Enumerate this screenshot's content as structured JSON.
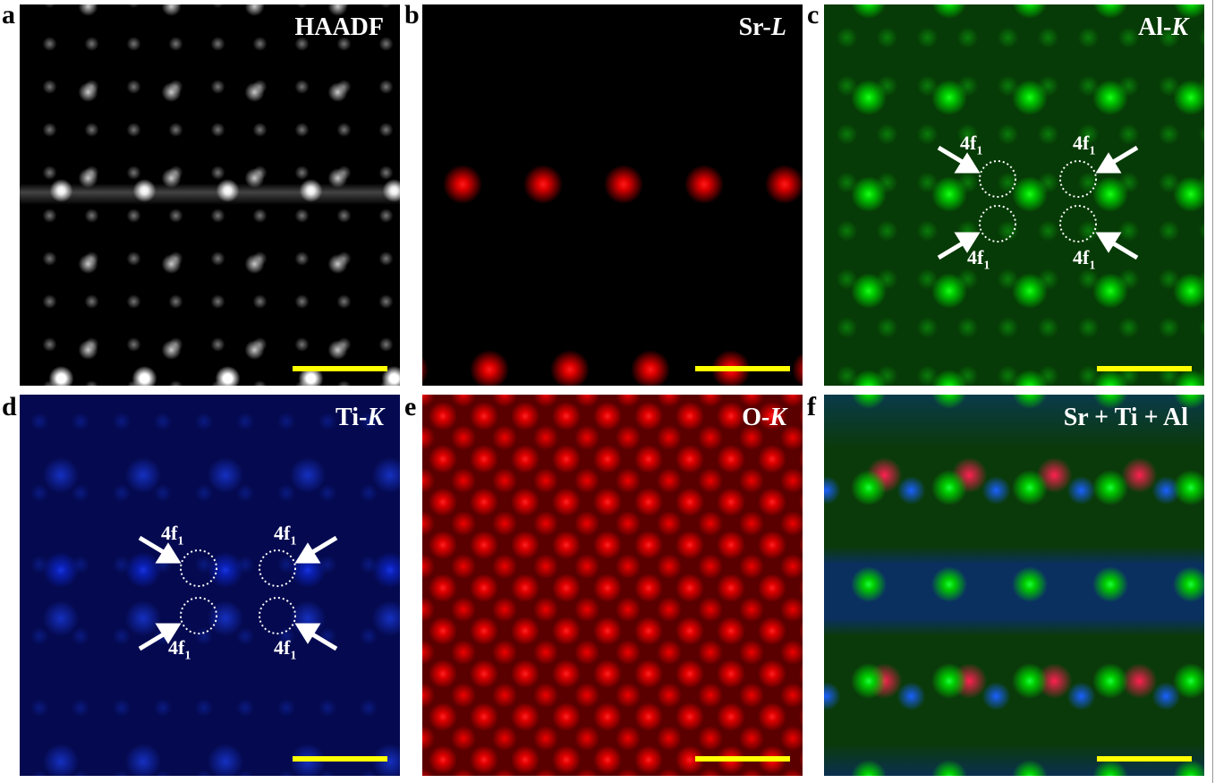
{
  "panels": [
    {
      "letter": "a",
      "title_prefix": "HAADF",
      "title_italic": "",
      "color": "#ffffff"
    },
    {
      "letter": "b",
      "title_prefix": "Sr-",
      "title_italic": "L",
      "color": "#ff0000"
    },
    {
      "letter": "c",
      "title_prefix": "Al-",
      "title_italic": "K",
      "color": "#00ff00"
    },
    {
      "letter": "d",
      "title_prefix": "Ti-",
      "title_italic": "K",
      "color": "#0000ff"
    },
    {
      "letter": "e",
      "title_prefix": "O-",
      "title_italic": "K",
      "color": "#ff0000"
    },
    {
      "letter": "f",
      "title_prefix": "Sr + Ti + Al",
      "title_italic": "",
      "color": "#ffffff"
    }
  ],
  "annotation": {
    "site": "4f",
    "subscript": "1"
  },
  "scale_bar_color": "#ffff00"
}
